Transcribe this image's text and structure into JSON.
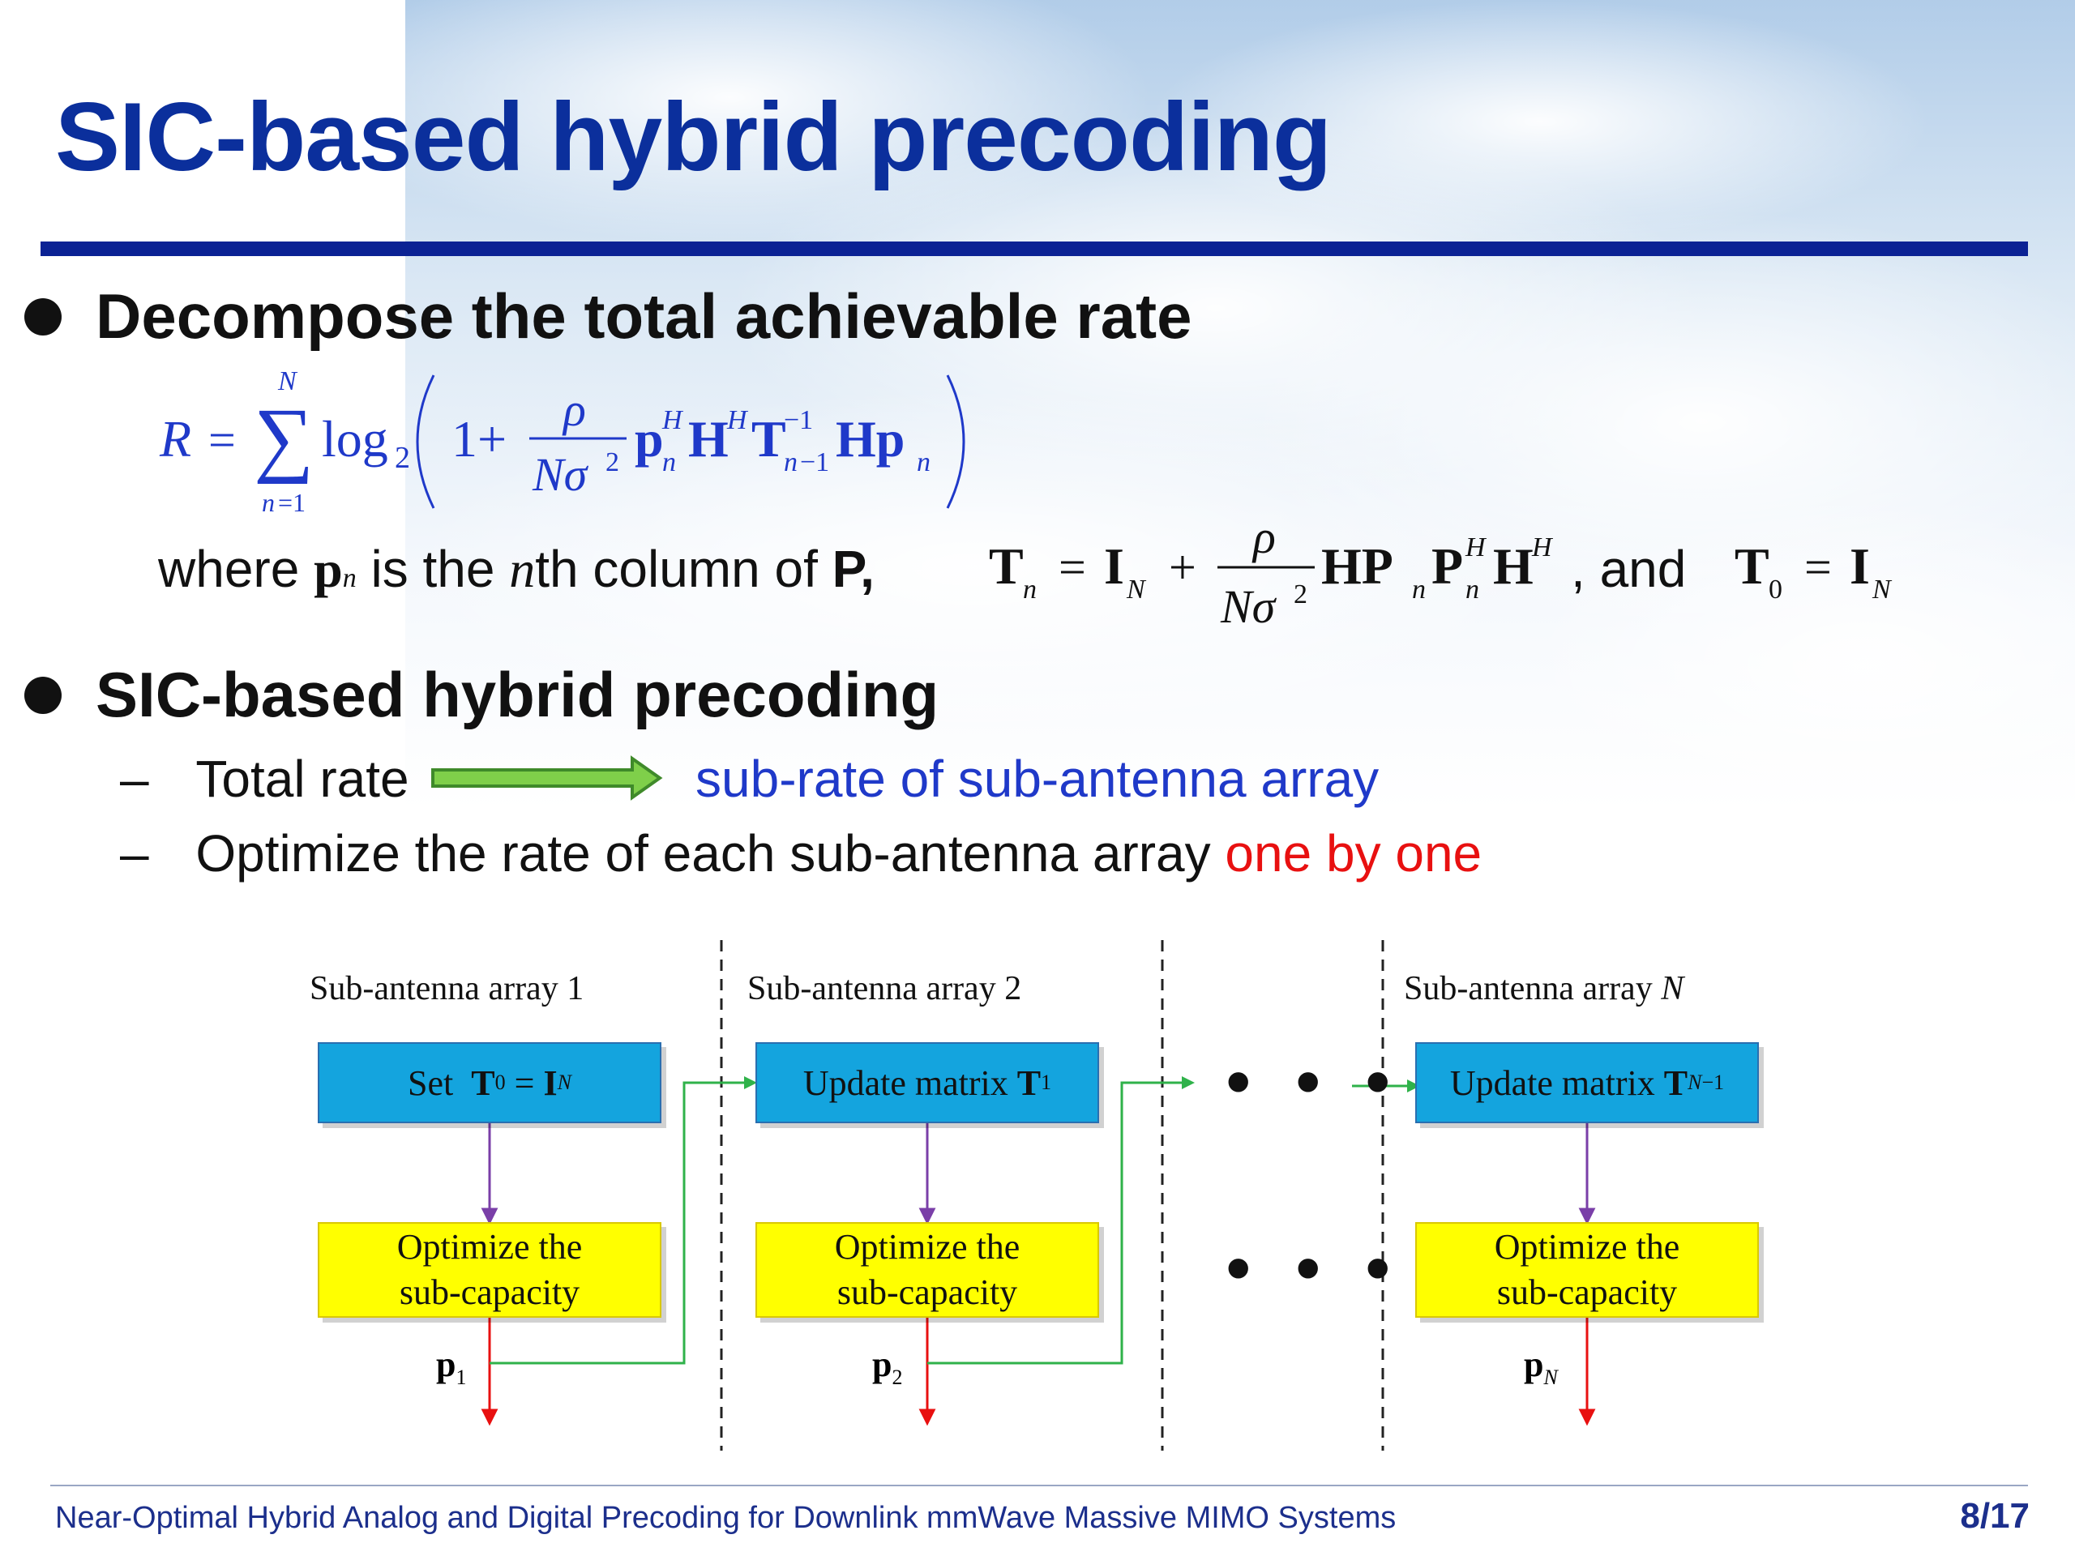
{
  "slide": {
    "title": "SIC-based hybrid precoding",
    "bullet1": "Decompose the total achievable rate",
    "where_prefix": "where",
    "where_mid1": "is the",
    "where_n": "n",
    "where_mid2": "th column of",
    "where_P": "P,",
    "where_and": ", and",
    "bullet2": "SIC-based hybrid precoding",
    "sub1_left": "Total rate",
    "sub1_right": "sub-rate of sub-antenna array",
    "sub2_prefix": "Optimize the rate of each sub-antenna array",
    "sub2_highlight": "one by one",
    "dash": "–"
  },
  "diagram": {
    "columns": [
      {
        "header": "Sub-antenna array 1",
        "top_box": "Set",
        "bottom_box_line1": "Optimize the",
        "bottom_box_line2": "sub-capacity",
        "output": "p"
      },
      {
        "header": "Sub-antenna array 2",
        "top_box": "Update matrix",
        "bottom_box_line1": "Optimize the",
        "bottom_box_line2": "sub-capacity",
        "output": "p"
      },
      {
        "header": "Sub-antenna array",
        "header_var": "N",
        "top_box": "Update matrix",
        "bottom_box_line1": "Optimize the",
        "bottom_box_line2": "sub-capacity",
        "output": "p"
      }
    ],
    "ellipsis": "• • •"
  },
  "footer": {
    "text": "Near-Optimal Hybrid Analog and Digital Precoding for Downlink mmWave Massive MIMO Systems",
    "page": "8/17"
  },
  "colors": {
    "title": "#0b2f9c",
    "rule": "#0b2294",
    "formula": "#1f39c9",
    "highlight": "#e81010",
    "blue_box": "#14a4de",
    "yellow_box": "#ffff00",
    "arrow_green": "#2fb24a",
    "arrow_purple": "#7a3fa8",
    "arrow_red": "#e81010"
  }
}
